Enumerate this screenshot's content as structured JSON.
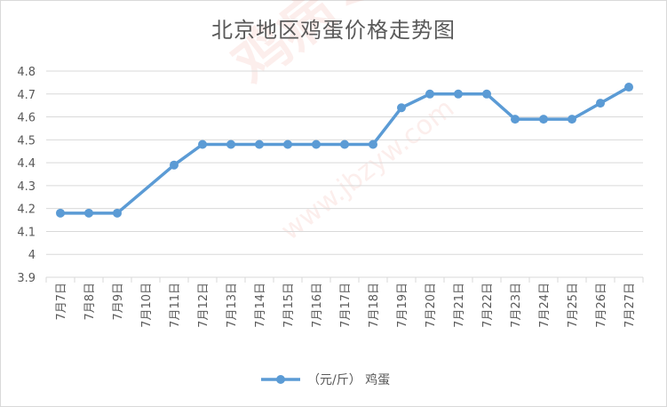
{
  "chart_data": {
    "type": "line",
    "title": "北京地区鸡蛋价格走势图",
    "categories": [
      "7月7日",
      "7月8日",
      "7月9日",
      "7月10日",
      "7月11日",
      "7月12日",
      "7月13日",
      "7月14日",
      "7月15日",
      "7月16日",
      "7月17日",
      "7月18日",
      "7月19日",
      "7月20日",
      "7月21日",
      "7月22日",
      "7月23日",
      "7月24日",
      "7月25日",
      "7月26日",
      "7月27日"
    ],
    "series": [
      {
        "name": "（元/斤） 鸡蛋",
        "values": [
          4.18,
          4.18,
          4.18,
          null,
          4.39,
          4.48,
          4.48,
          4.48,
          4.48,
          4.48,
          4.48,
          4.48,
          4.64,
          4.7,
          4.7,
          4.7,
          4.59,
          4.59,
          4.59,
          4.66,
          4.73
        ],
        "color": "#5b9bd5"
      }
    ],
    "ylim": [
      3.9,
      4.8
    ],
    "yticks": [
      "3.9",
      "4",
      "4.1",
      "4.2",
      "4.3",
      "4.4",
      "4.5",
      "4.6",
      "4.7",
      "4.8"
    ],
    "grid": true,
    "legend": "bottom",
    "xlabel": "",
    "ylabel": ""
  },
  "watermark": {
    "text": "鸡病专业网",
    "url": "www.jbzyw.com"
  }
}
